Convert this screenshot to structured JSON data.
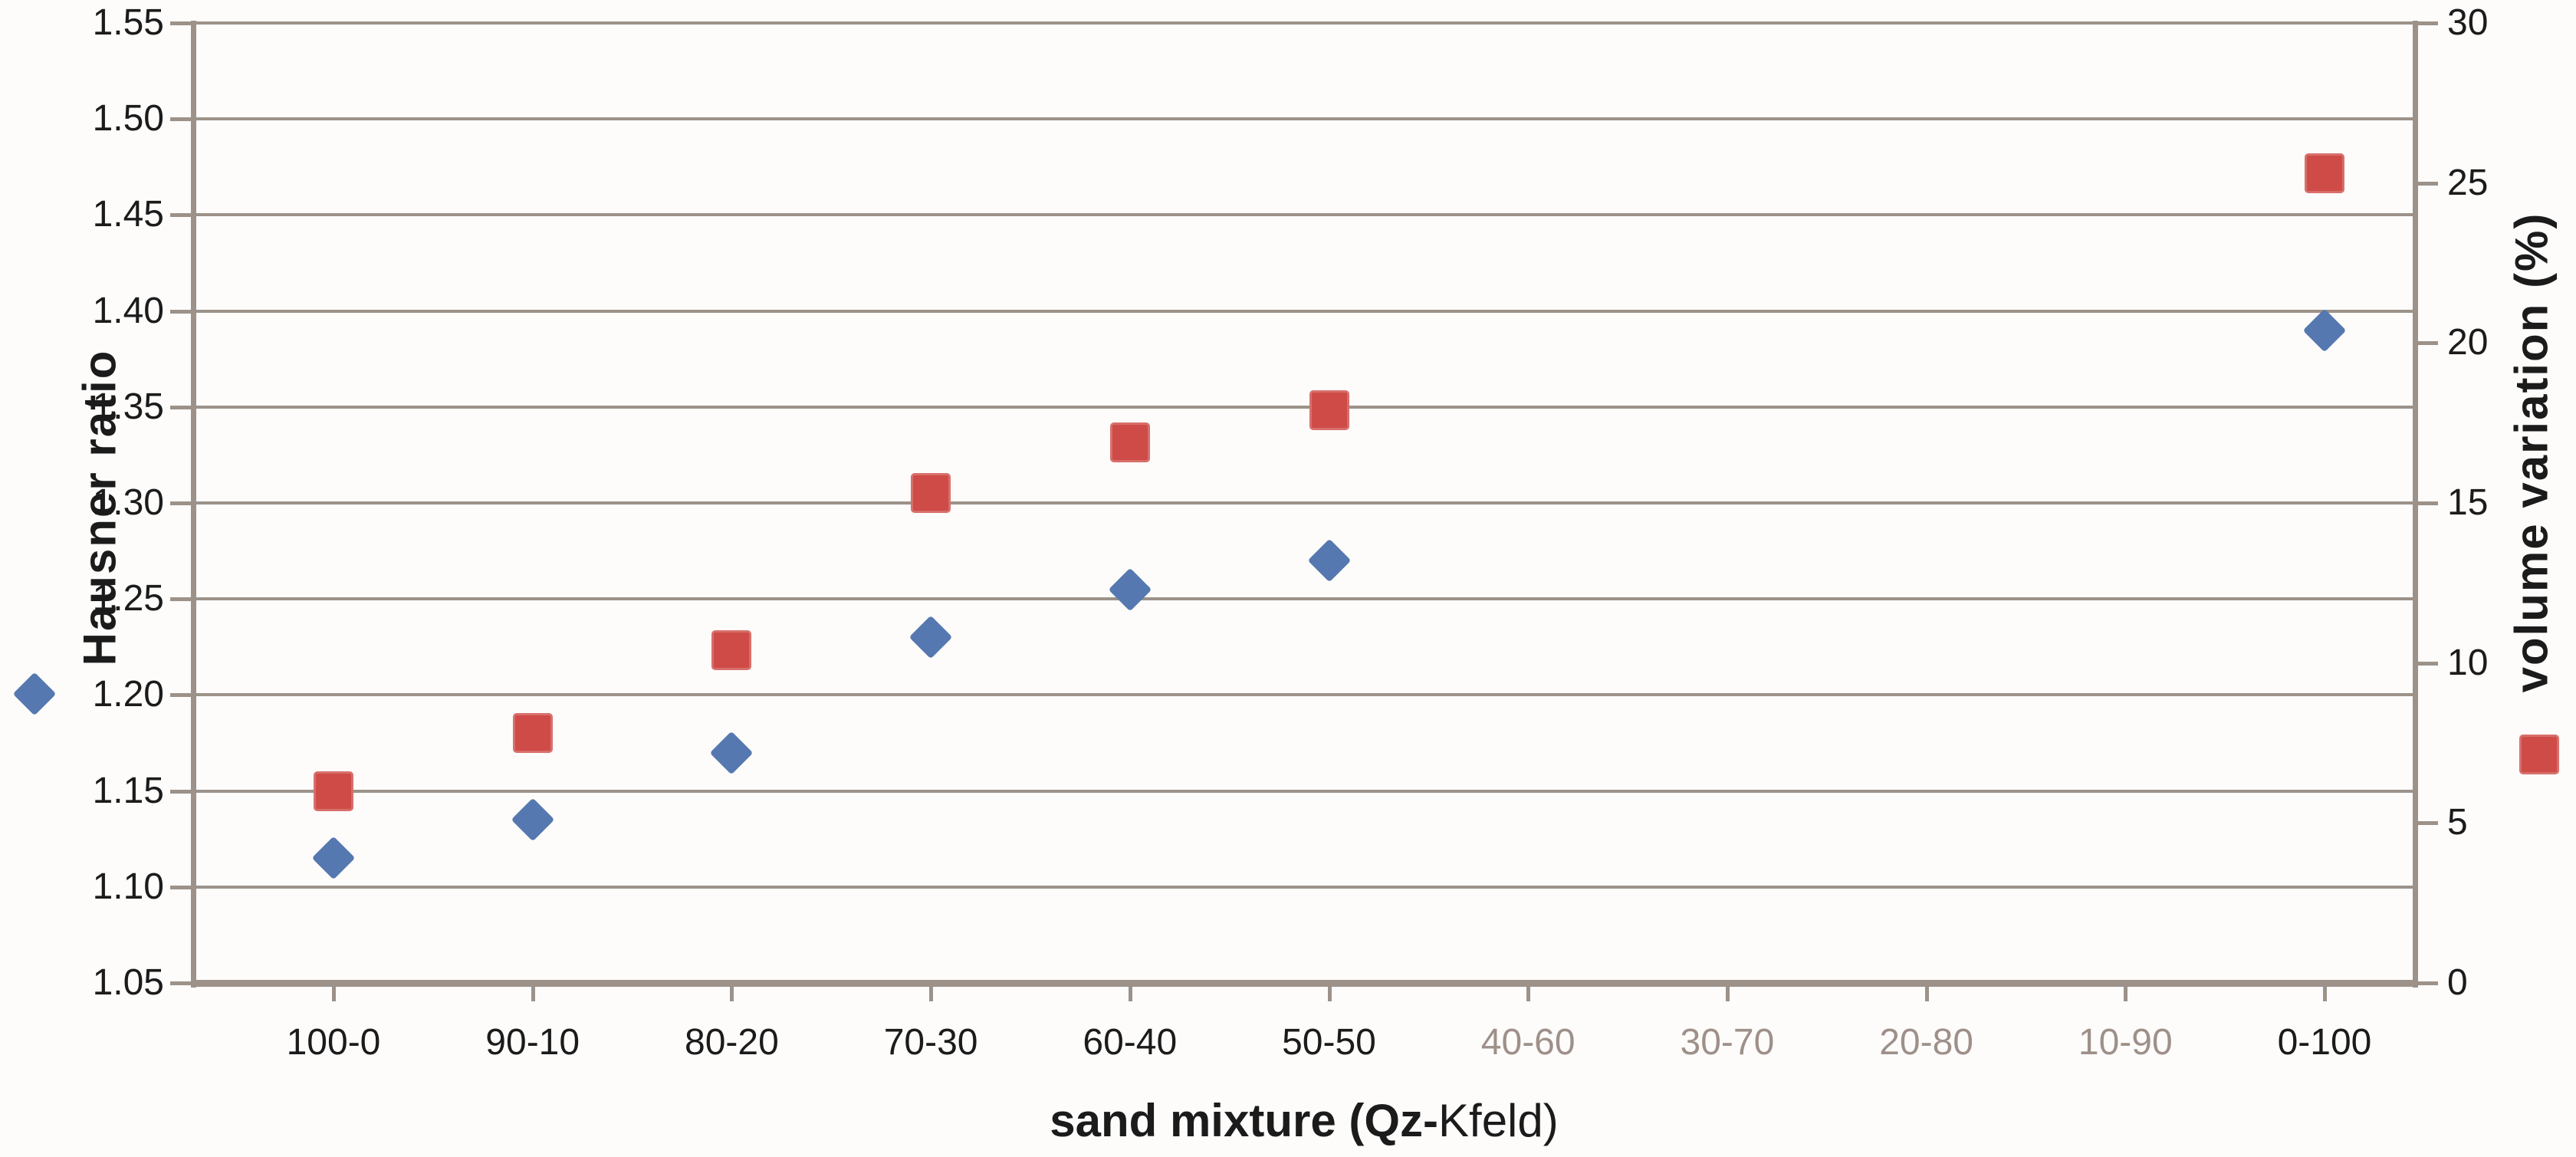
{
  "chart_data": {
    "type": "scatter",
    "title": "",
    "x_axis": {
      "title_bold": "sand mixture (Qz-",
      "title_regular": "Kfeld)",
      "categories": [
        "100-0",
        "90-10",
        "80-20",
        "70-30",
        "60-40",
        "50-50",
        "40-60",
        "30-70",
        "20-80",
        "10-90",
        "0-100"
      ],
      "muted_categories": [
        "40-60",
        "30-70",
        "20-80",
        "10-90"
      ]
    },
    "y_left_axis": {
      "title": "Hausner ratio",
      "min": 1.05,
      "max": 1.55,
      "step": 0.05,
      "tick_labels": [
        "1.55",
        "1.50",
        "1.45",
        "1.40",
        "1.35",
        "1.30",
        "1.25",
        "1.20",
        "1.15",
        "1.10",
        "1.05"
      ]
    },
    "y_right_axis": {
      "title": "volume variation (%)",
      "min": 0,
      "max": 30,
      "step": 5,
      "tick_labels": [
        "30",
        "25",
        "20",
        "15",
        "10",
        "5",
        "0"
      ]
    },
    "series": [
      {
        "name": "Hausner ratio",
        "axis": "left",
        "marker": "diamond",
        "color": "#5578B0",
        "values": [
          1.115,
          1.135,
          1.17,
          1.23,
          1.255,
          1.27,
          null,
          null,
          null,
          null,
          1.39
        ]
      },
      {
        "name": "volume variation (%)",
        "axis": "right",
        "marker": "square",
        "color": "#CE4B47",
        "values": [
          6.0,
          7.8,
          10.4,
          15.3,
          16.9,
          17.9,
          null,
          null,
          null,
          null,
          25.3
        ]
      }
    ],
    "grid": true,
    "legend_position": "markers-beside-axis-titles"
  },
  "colors": {
    "background": "#FDFCFB",
    "gridline": "#9C9289",
    "axis_line": "#9C9289",
    "tick_label": "#1B1B1B",
    "muted_tick_label": "#9E9089",
    "diamond_series": "#5578B0",
    "square_series": "#CE4B47"
  }
}
